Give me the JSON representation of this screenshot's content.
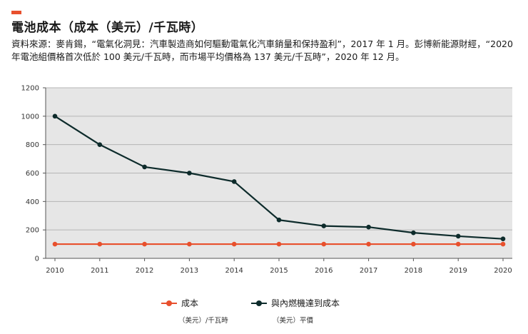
{
  "header": {
    "title": "電池成本（成本（美元）/千瓦時）",
    "source": "資料來源：麥肯錫，“電氣化洞見：汽車製造商如何驅動電氣化汽車銷量和保持盈利”，2017 年 1 月。彭博新能源財經，“2020 年電池組價格首次低於 100 美元/千瓦時，而市場平均價格為 137 美元/千瓦時”，2020 年 12 月。"
  },
  "legend": {
    "cost_label": "成本",
    "cost_unit": "（美元）/千瓦時",
    "parity_label": "與內燃機達到成本",
    "parity_unit": "（美元）平價"
  },
  "colors": {
    "accent": "#e8502d",
    "cost_series": "#e8502d",
    "parity_series": "#0d2b2b",
    "plot_background": "#e6e6e6",
    "gridline": "#b5b5b5"
  },
  "chart_data": {
    "type": "line",
    "x": [
      "2010",
      "2011",
      "2012",
      "2013",
      "2014",
      "2015",
      "2016",
      "2017",
      "2018",
      "2019",
      "2020"
    ],
    "series": [
      {
        "name": "成本",
        "color": "#e8502d",
        "values": [
          100,
          100,
          100,
          100,
          100,
          100,
          100,
          100,
          100,
          100,
          100
        ]
      },
      {
        "name": "與內燃機達到成本",
        "color": "#0d2b2b",
        "values": [
          1000,
          800,
          643,
          600,
          540,
          270,
          228,
          220,
          180,
          156,
          137
        ]
      }
    ],
    "ylim": [
      0,
      1200
    ],
    "yticks": [
      0,
      200,
      400,
      600,
      800,
      1000,
      1200
    ],
    "grid": true,
    "legend_position": "bottom",
    "xlabel": "",
    "ylabel": ""
  }
}
